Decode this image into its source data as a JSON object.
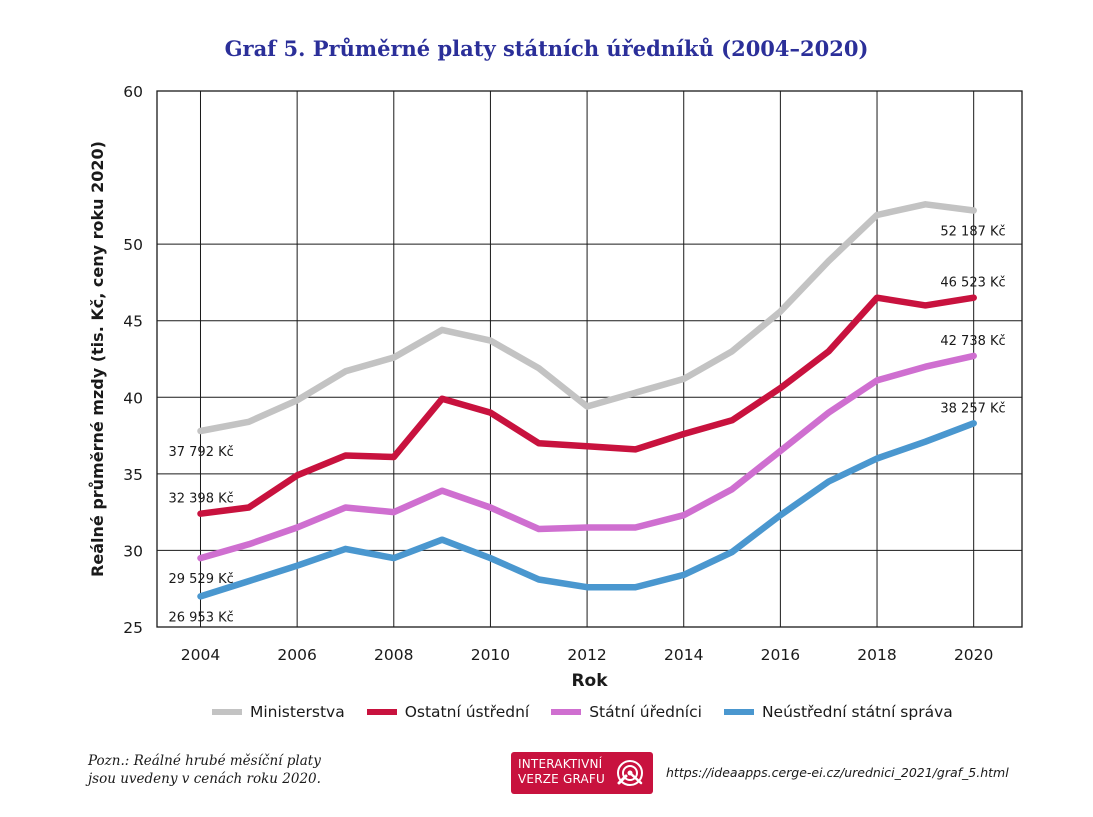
{
  "title": "Graf 5. Průměrné platy státních úředníků (2004–2020)",
  "chart_data": {
    "type": "line",
    "xlabel": "Rok",
    "ylabel": "Reálné průměrné mzdy (tis. Kč, ceny roku 2020)",
    "xlim": [
      2003.1,
      2021
    ],
    "ylim": [
      25,
      60
    ],
    "x_ticks": [
      "2004",
      "2006",
      "2008",
      "2010",
      "2012",
      "2014",
      "2016",
      "2018",
      "2020"
    ],
    "y_ticks": [
      "25",
      "30",
      "35",
      "40",
      "45",
      "50",
      "60"
    ],
    "x": [
      2004,
      2005,
      2006,
      2007,
      2008,
      2009,
      2010,
      2011,
      2012,
      2013,
      2014,
      2015,
      2016,
      2017,
      2018,
      2019,
      2020
    ],
    "grid": true,
    "legend_position": "bottom",
    "series": [
      {
        "name": "Ministerstva",
        "color": "#c3c3c3",
        "values": [
          37.8,
          38.4,
          39.8,
          41.7,
          42.6,
          44.4,
          43.7,
          41.9,
          39.4,
          40.3,
          41.2,
          43.0,
          45.6,
          48.9,
          51.9,
          52.6,
          52.2
        ],
        "labels": [
          {
            "index": 0,
            "text": "37 792 Kč",
            "pos": "below"
          },
          {
            "index": 16,
            "text": "52 187 Kč",
            "pos": "below"
          }
        ]
      },
      {
        "name": "Ostatní ústřední",
        "color": "#c8123e",
        "values": [
          32.4,
          32.8,
          34.9,
          36.2,
          36.1,
          39.9,
          39.0,
          37.0,
          36.8,
          36.6,
          37.6,
          38.5,
          40.6,
          43.0,
          46.5,
          46.0,
          46.5
        ],
        "labels": [
          {
            "index": 0,
            "text": "32 398 Kč",
            "pos": "above"
          },
          {
            "index": 16,
            "text": "46 523 Kč",
            "pos": "above"
          }
        ]
      },
      {
        "name": "Státní úředníci",
        "color": "#cf6fd0",
        "values": [
          29.5,
          30.4,
          31.5,
          32.8,
          32.5,
          33.9,
          32.8,
          31.4,
          31.5,
          31.5,
          32.3,
          34.0,
          36.5,
          39.0,
          41.1,
          42.0,
          42.7
        ],
        "labels": [
          {
            "index": 0,
            "text": "29 529 Kč",
            "pos": "below"
          },
          {
            "index": 16,
            "text": "42 738 Kč",
            "pos": "above"
          }
        ]
      },
      {
        "name": "Neústřední státní správa",
        "color": "#4a97cf",
        "values": [
          27.0,
          28.0,
          29.0,
          30.1,
          29.5,
          30.7,
          29.5,
          28.1,
          27.6,
          27.6,
          28.4,
          29.9,
          32.3,
          34.5,
          36.0,
          37.1,
          38.3
        ],
        "labels": [
          {
            "index": 0,
            "text": "26 953 Kč",
            "pos": "below"
          },
          {
            "index": 16,
            "text": "38 257 Kč",
            "pos": "above"
          }
        ]
      }
    ]
  },
  "note": {
    "line1": "Pozn.: Reálné hrubé měsíční platy",
    "line2": "jsou uvedeny v cenách roku 2020."
  },
  "badge": {
    "line1": "INTERAKTIVNÍ",
    "line2": "VERZE GRAFU"
  },
  "url": "https://ideaapps.cerge-ei.cz/urednici_2021/graf_5.html"
}
